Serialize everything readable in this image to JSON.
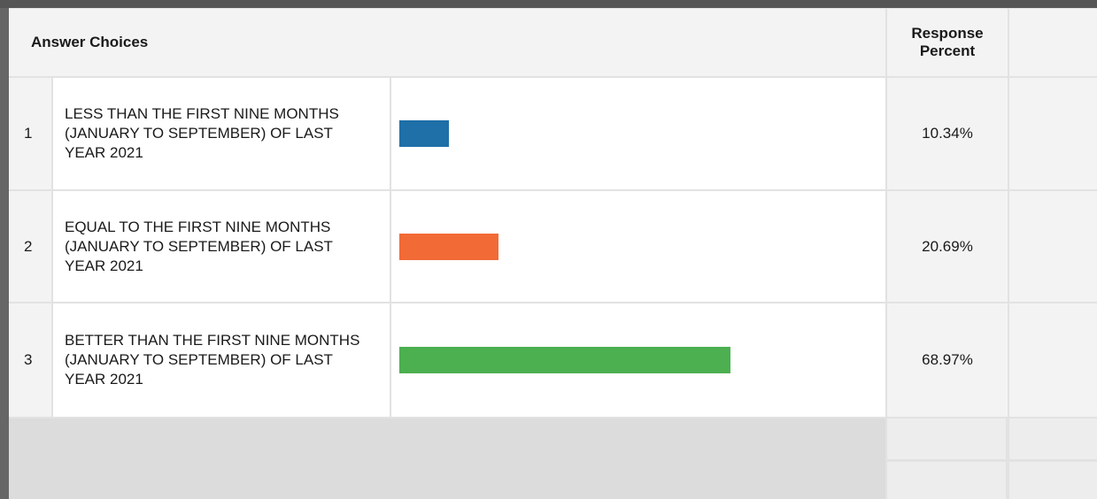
{
  "table": {
    "header": {
      "choices": "Answer Choices",
      "percent": "Response Percent"
    },
    "rows": [
      {
        "index": 1,
        "choice": "LESS THAN THE FIRST NINE MONTHS (JANUARY TO SEPTEMBER) OF LAST YEAR 2021",
        "percent": {
          "value": 10.34,
          "label": "10.34%"
        },
        "color": "#1f6fa8"
      },
      {
        "index": 2,
        "choice": "EQUAL TO THE FIRST NINE MONTHS (JANUARY TO SEPTEMBER) OF LAST YEAR 2021",
        "percent": {
          "value": 20.69,
          "label": "20.69%"
        },
        "color": "#f26a36"
      },
      {
        "index": 3,
        "choice": "BETTER THAN THE FIRST NINE MONTHS (JANUARY TO SEPTEMBER) OF LAST YEAR 2021",
        "percent": {
          "value": 68.97,
          "label": "68.97%"
        },
        "color": "#4caf50"
      }
    ]
  }
}
